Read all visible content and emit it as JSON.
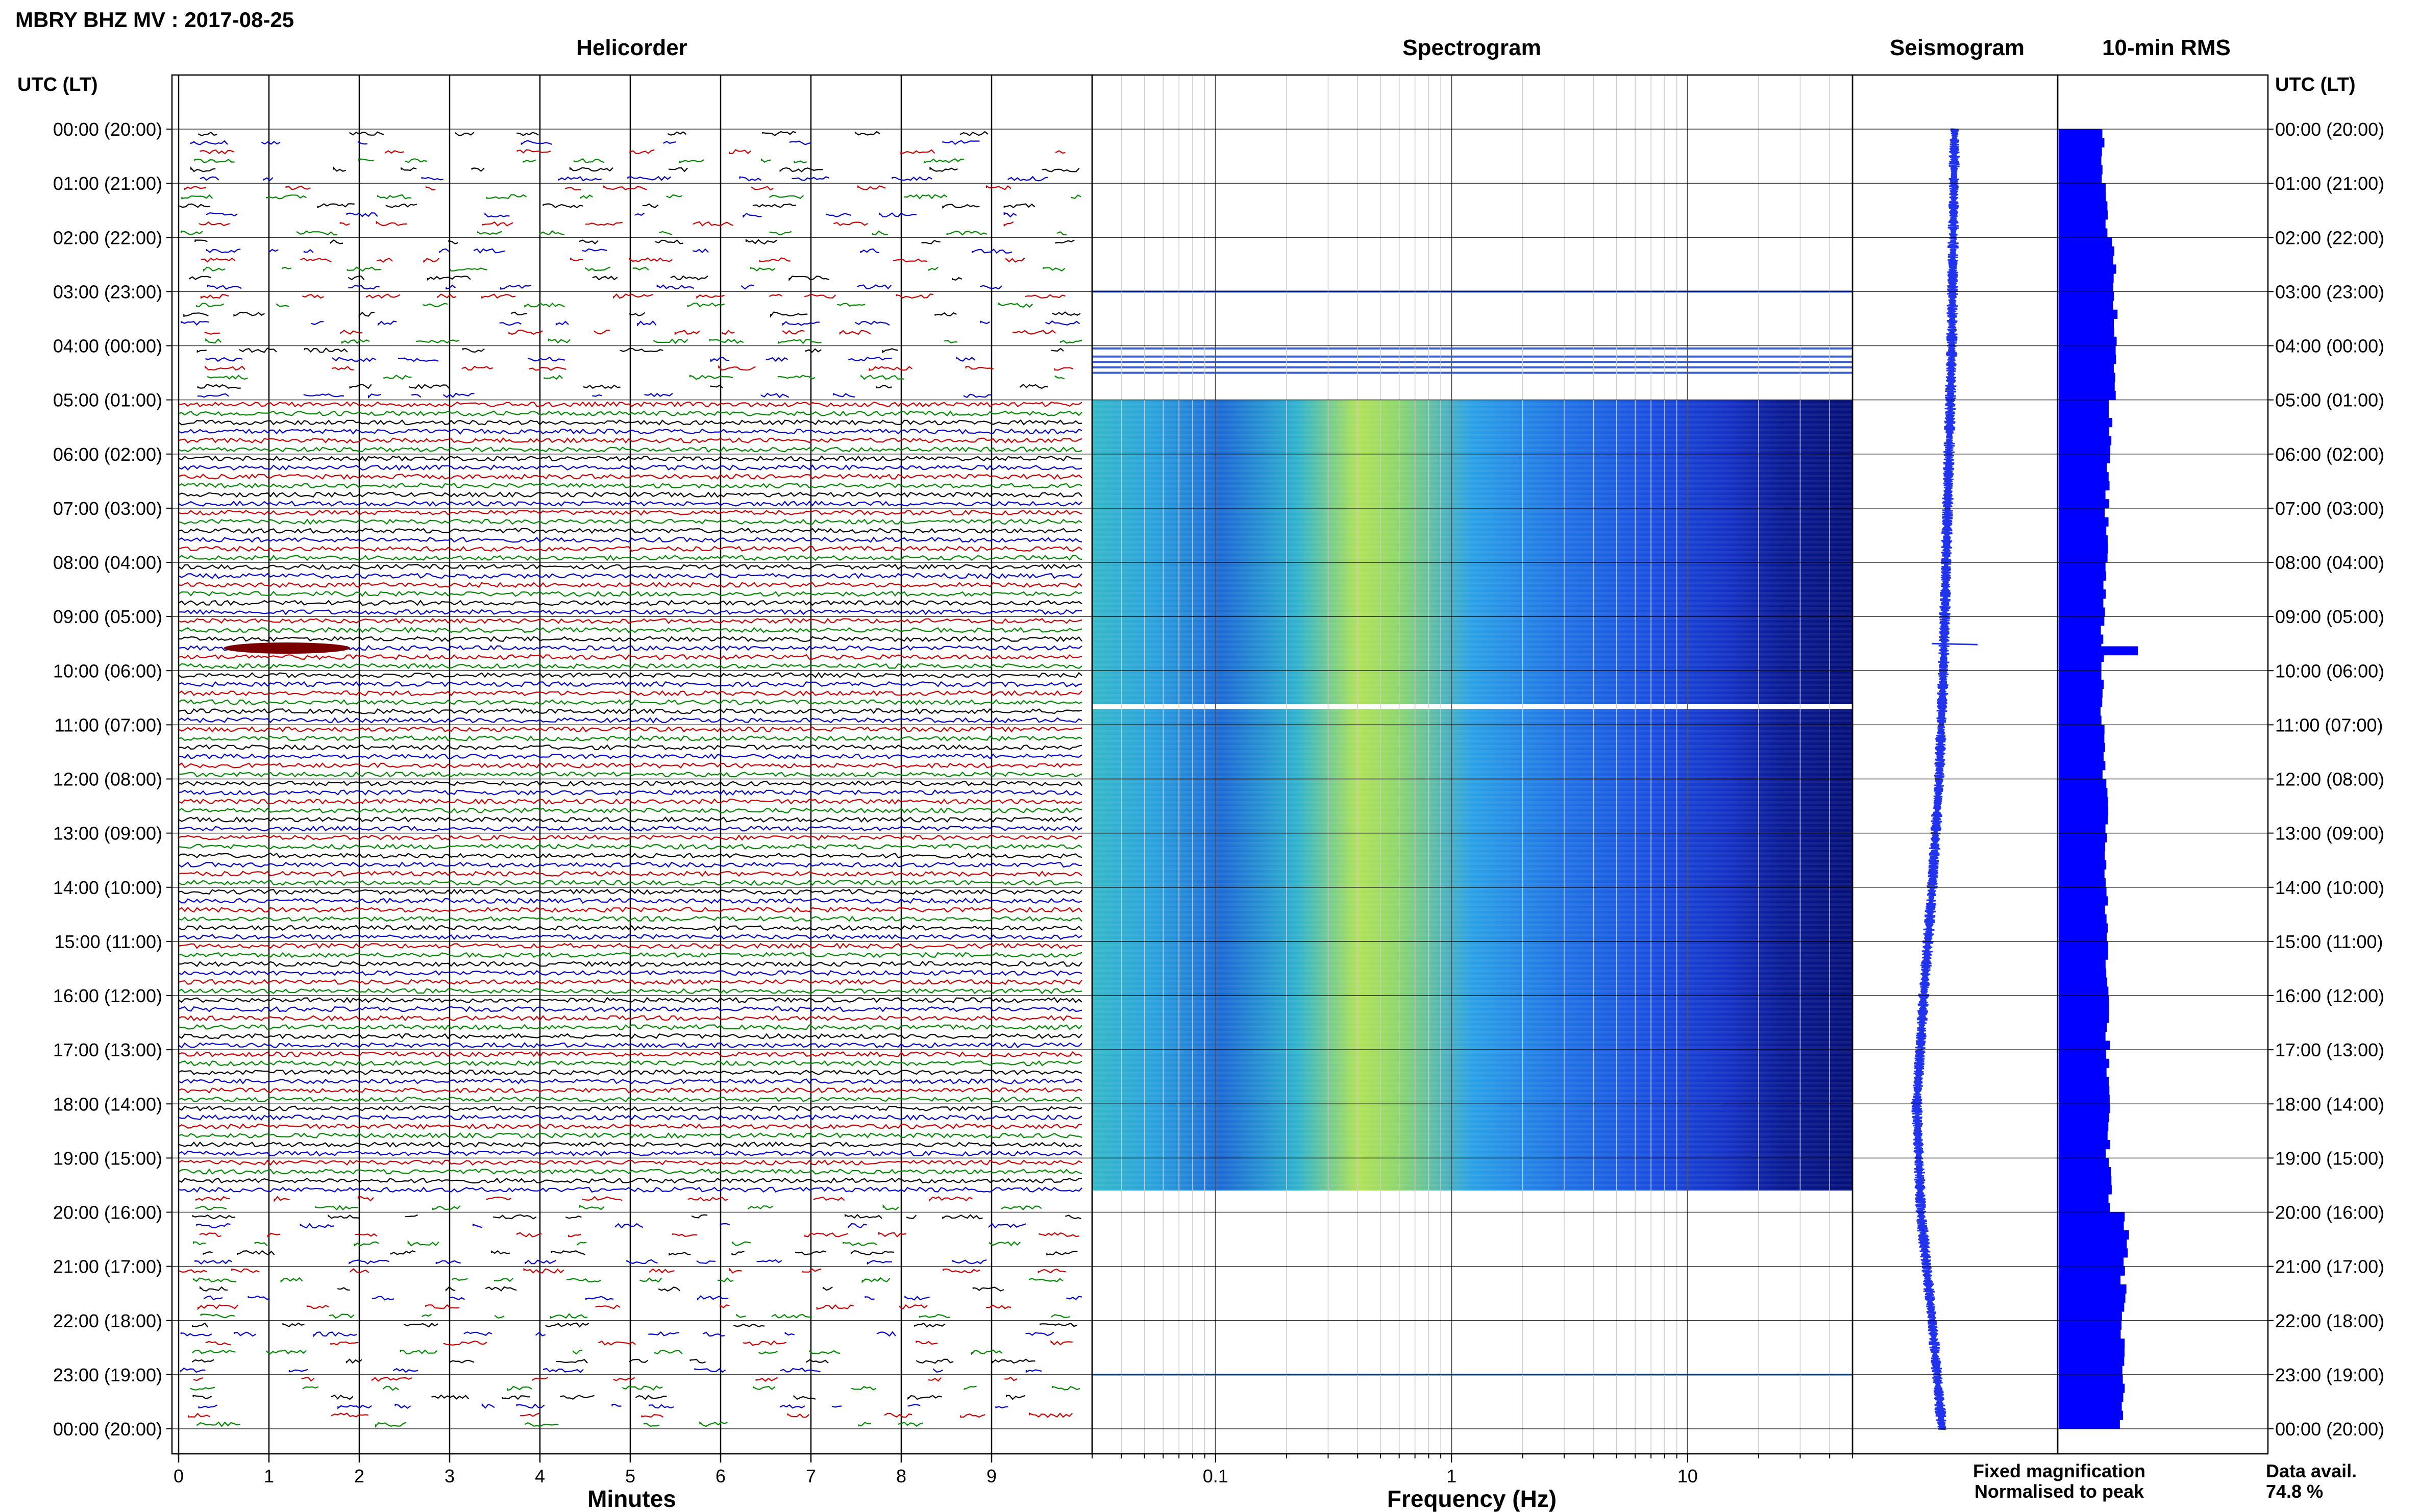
{
  "title": "MBRY BHZ MV : 2017-08-25",
  "panels": {
    "helicorder": "Helicorder",
    "spectrogram": "Spectrogram",
    "seismogram": "Seismogram",
    "rms": "10-min RMS"
  },
  "utc_header": "UTC (LT)",
  "time_labels": [
    "00:00 (20:00)",
    "01:00 (21:00)",
    "02:00 (22:00)",
    "03:00 (23:00)",
    "04:00 (00:00)",
    "05:00 (01:00)",
    "06:00 (02:00)",
    "07:00 (03:00)",
    "08:00 (04:00)",
    "09:00 (05:00)",
    "10:00 (06:00)",
    "11:00 (07:00)",
    "12:00 (08:00)",
    "13:00 (09:00)",
    "14:00 (10:00)",
    "15:00 (11:00)",
    "16:00 (12:00)",
    "17:00 (13:00)",
    "18:00 (14:00)",
    "19:00 (15:00)",
    "20:00 (16:00)",
    "21:00 (17:00)",
    "22:00 (18:00)",
    "23:00 (19:00)",
    "00:00 (20:00)"
  ],
  "footer": {
    "fixed": "Fixed magnification",
    "normalised": "Normalised to peak",
    "avail_label": "Data avail.",
    "avail_value": "74.8 %"
  },
  "colors": {
    "fixed": "#0000ff",
    "normalised": "#ff0000",
    "rms": "#0000ff",
    "trace_cycle": [
      "#000000",
      "#0000cc",
      "#cc0000",
      "#008800"
    ]
  },
  "chart_data": [
    {
      "type": "line",
      "title": "Helicorder",
      "xlabel": "Minutes",
      "xticks": [
        0,
        1,
        2,
        3,
        4,
        5,
        6,
        7,
        8,
        9
      ],
      "xlim": [
        0,
        10
      ],
      "ylabel": "UTC (LT)",
      "rows_per_hour": 6,
      "data_coverage": [
        {
          "from_hour": 0,
          "to_hour": 5,
          "state": "gappy"
        },
        {
          "from_hour": 5,
          "to_hour": 19.6,
          "state": "continuous"
        },
        {
          "from_hour": 19.6,
          "to_hour": 24,
          "state": "gappy"
        }
      ],
      "events": [
        {
          "hour": 9.5,
          "minute_start": 0.5,
          "minute_end": 1.9,
          "note": "large amplitude"
        }
      ]
    },
    {
      "type": "heatmap",
      "title": "Spectrogram",
      "xlabel": "Frequency (Hz)",
      "xscale": "log",
      "xticks": [
        0.1,
        1,
        10
      ],
      "xlim": [
        0.03,
        50
      ],
      "ylim_hours": [
        0,
        24
      ],
      "coverage_hours": [
        5,
        19.6
      ],
      "peak_band_hz": [
        0.25,
        0.6
      ],
      "colormap": "parula"
    },
    {
      "type": "line",
      "title": "Seismogram",
      "ylim_hours": [
        0,
        24
      ],
      "x": [
        0,
        2,
        4,
        6,
        8,
        10,
        12,
        14,
        16,
        18,
        20,
        22,
        24
      ],
      "y": [
        0.0,
        -0.05,
        -0.1,
        -0.2,
        -0.3,
        -0.4,
        -0.55,
        -0.8,
        -1.1,
        -1.35,
        -1.2,
        -0.8,
        -0.45
      ]
    },
    {
      "type": "bar",
      "title": "10-min RMS",
      "ylim_hours": [
        0,
        24
      ],
      "x_hours": [
        0,
        1,
        2,
        3,
        4,
        5,
        6,
        7,
        8,
        9,
        10,
        11,
        12,
        13,
        14,
        15,
        16,
        17,
        18,
        19,
        20,
        21,
        22,
        23
      ],
      "values": [
        0.55,
        0.6,
        0.7,
        0.72,
        0.72,
        0.65,
        0.62,
        0.6,
        0.58,
        0.55,
        0.55,
        0.58,
        0.6,
        0.6,
        0.6,
        0.62,
        0.62,
        0.62,
        0.62,
        0.65,
        0.85,
        0.82,
        0.8,
        0.8
      ],
      "spikes": [
        {
          "hour": 9.55,
          "value": 1.0
        }
      ]
    }
  ]
}
